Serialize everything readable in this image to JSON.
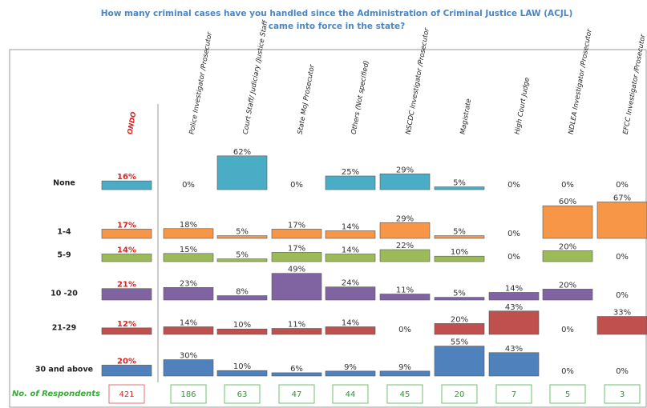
{
  "chart_data": {
    "type": "bar",
    "title": "How many criminal  cases have you handled since the Administration  of Criminal  Justice LAW (ACJL) came into force in the state?",
    "categories": [
      "ONDO",
      "Police Investigator /Prosecutor",
      "Court Staff/ Judiciary /Justice Staff",
      "State MoJ Prosecutor",
      "Others (Not specified)",
      "NSCDC Investigator /Prosecutor",
      "Magistrate",
      "High Court Judge",
      "NDLEA Investigator /Prosecutor",
      "EFCC Investigator /Prosecutor"
    ],
    "series": [
      {
        "name": "None",
        "color": "#4bacc6",
        "values": [
          16,
          0,
          62,
          0,
          25,
          29,
          5,
          0,
          0,
          0
        ],
        "value_labels": [
          "16%",
          "0%",
          "62%",
          "0%",
          "25%",
          "29%",
          "5%",
          "0%",
          "0%",
          "0%"
        ]
      },
      {
        "name": "1-4",
        "color": "#f79646",
        "values": [
          17,
          18,
          5,
          17,
          14,
          29,
          5,
          0,
          60,
          67
        ],
        "value_labels": [
          "17%",
          "18%",
          "5%",
          "17%",
          "14%",
          "29%",
          "5%",
          "0%",
          "60%",
          "67%"
        ]
      },
      {
        "name": "5-9",
        "color": "#9bbb59",
        "values": [
          14,
          15,
          5,
          17,
          14,
          22,
          10,
          0,
          20,
          0
        ],
        "value_labels": [
          "14%",
          "15%",
          "5%",
          "17%",
          "14%",
          "22%",
          "10%",
          "0%",
          "20%",
          "0%"
        ]
      },
      {
        "name": "10 -20",
        "color": "#8064a2",
        "values": [
          21,
          23,
          8,
          49,
          24,
          11,
          5,
          14,
          20,
          0
        ],
        "value_labels": [
          "21%",
          "23%",
          "8%",
          "49%",
          "24%",
          "11%",
          "5%",
          "14%",
          "20%",
          "0%"
        ]
      },
      {
        "name": "21-29",
        "color": "#c0504d",
        "values": [
          12,
          14,
          10,
          11,
          14,
          0,
          20,
          43,
          0,
          33
        ],
        "value_labels": [
          "12%",
          "14%",
          "10%",
          "11%",
          "14%",
          "0%",
          "20%",
          "43%",
          "0%",
          "33%"
        ]
      },
      {
        "name": "30 and above",
        "color": "#4f81bd",
        "values": [
          20,
          30,
          10,
          6,
          9,
          9,
          55,
          43,
          0,
          0
        ],
        "value_labels": [
          "20%",
          "30%",
          "10%",
          "6%",
          "9%",
          "9%",
          "55%",
          "43%",
          "0%",
          "0%"
        ]
      }
    ],
    "respondents_label": "No. of Respondents",
    "respondents": [
      421,
      186,
      63,
      47,
      44,
      45,
      20,
      7,
      5,
      3
    ]
  }
}
